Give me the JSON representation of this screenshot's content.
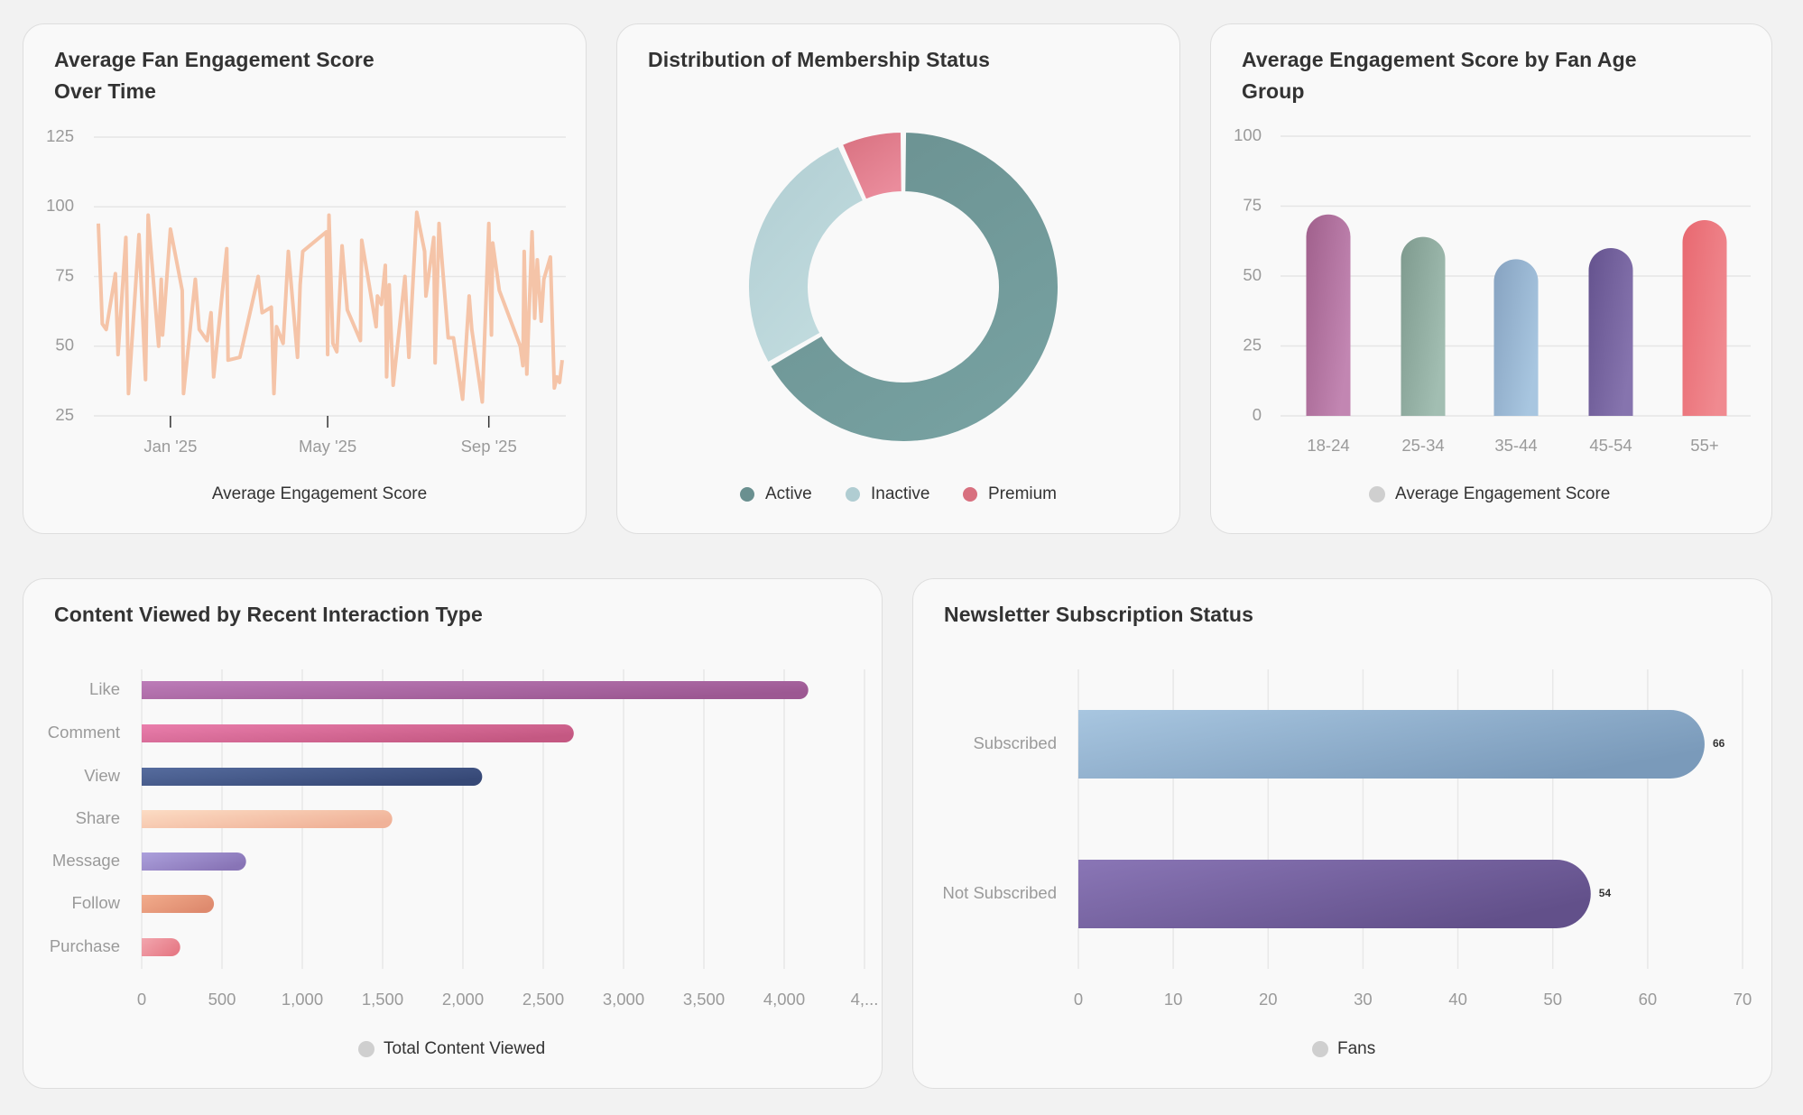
{
  "chart_data": [
    {
      "type": "line",
      "title": "Average Fan Engagement Score Over Time",
      "legend": "Average Engagement Score",
      "color": "#f5c4a8",
      "ylim": [
        25,
        125
      ],
      "y_ticks": [
        "25",
        "50",
        "75",
        "100",
        "125"
      ],
      "x_ticks": [
        {
          "date": "2025-01-01",
          "label": "Jan '25"
        },
        {
          "date": "2025-05-01",
          "label": "May '25"
        },
        {
          "date": "2025-09-01",
          "label": "Sep '25"
        }
      ],
      "grid": true,
      "points": [
        [
          "2024-11-07",
          94
        ],
        [
          "2024-11-10",
          58
        ],
        [
          "2024-11-13",
          56
        ],
        [
          "2024-11-20",
          76
        ],
        [
          "2024-11-22",
          47
        ],
        [
          "2024-11-28",
          89
        ],
        [
          "2024-11-30",
          33
        ],
        [
          "2024-12-08",
          90
        ],
        [
          "2024-12-13",
          38
        ],
        [
          "2024-12-15",
          97
        ],
        [
          "2024-12-23",
          50
        ],
        [
          "2024-12-25",
          74
        ],
        [
          "2024-12-26",
          54
        ],
        [
          "2025-01-01",
          92
        ],
        [
          "2025-01-10",
          70
        ],
        [
          "2025-01-11",
          33
        ],
        [
          "2025-01-20",
          74
        ],
        [
          "2025-01-23",
          56
        ],
        [
          "2025-01-29",
          52
        ],
        [
          "2025-02-01",
          62
        ],
        [
          "2025-02-03",
          39
        ],
        [
          "2025-02-13",
          85
        ],
        [
          "2025-02-14",
          45
        ],
        [
          "2025-02-23",
          46
        ],
        [
          "2025-03-09",
          75
        ],
        [
          "2025-03-12",
          62
        ],
        [
          "2025-03-19",
          64
        ],
        [
          "2025-03-21",
          33
        ],
        [
          "2025-03-23",
          57
        ],
        [
          "2025-03-28",
          51
        ],
        [
          "2025-04-01",
          84
        ],
        [
          "2025-04-08",
          46
        ],
        [
          "2025-04-10",
          72
        ],
        [
          "2025-04-12",
          84
        ],
        [
          "2025-04-30",
          91
        ],
        [
          "2025-05-01",
          47
        ],
        [
          "2025-05-02",
          97
        ],
        [
          "2025-05-05",
          51
        ],
        [
          "2025-05-08",
          48
        ],
        [
          "2025-05-12",
          86
        ],
        [
          "2025-05-16",
          63
        ],
        [
          "2025-05-26",
          52
        ],
        [
          "2025-05-27",
          88
        ],
        [
          "2025-06-07",
          57
        ],
        [
          "2025-06-08",
          68
        ],
        [
          "2025-06-11",
          65
        ],
        [
          "2025-06-14",
          79
        ],
        [
          "2025-06-15",
          39
        ],
        [
          "2025-06-17",
          72
        ],
        [
          "2025-06-20",
          36
        ],
        [
          "2025-06-29",
          75
        ],
        [
          "2025-07-02",
          46
        ],
        [
          "2025-07-08",
          98
        ],
        [
          "2025-07-14",
          84
        ],
        [
          "2025-07-15",
          68
        ],
        [
          "2025-07-21",
          89
        ],
        [
          "2025-07-22",
          44
        ],
        [
          "2025-07-25",
          94
        ],
        [
          "2025-08-01",
          53
        ],
        [
          "2025-08-05",
          53
        ],
        [
          "2025-08-12",
          31
        ],
        [
          "2025-08-17",
          68
        ],
        [
          "2025-08-19",
          56
        ],
        [
          "2025-08-27",
          30
        ],
        [
          "2025-09-01",
          94
        ],
        [
          "2025-09-03",
          54
        ],
        [
          "2025-09-04",
          87
        ],
        [
          "2025-09-09",
          70
        ],
        [
          "2025-09-25",
          50
        ],
        [
          "2025-09-27",
          43
        ],
        [
          "2025-09-28",
          84
        ],
        [
          "2025-09-30",
          40
        ],
        [
          "2025-10-04",
          91
        ],
        [
          "2025-10-06",
          60
        ],
        [
          "2025-10-08",
          81
        ],
        [
          "2025-10-11",
          59
        ],
        [
          "2025-10-13",
          74
        ],
        [
          "2025-10-18",
          82
        ],
        [
          "2025-10-21",
          35
        ],
        [
          "2025-10-23",
          39
        ],
        [
          "2025-10-25",
          37
        ],
        [
          "2025-10-27",
          45
        ]
      ]
    },
    {
      "type": "pie",
      "title": "Distribution of Membership Status",
      "donut": true,
      "slices": [
        {
          "label": "Active",
          "value": 80,
          "color": "#6a9090",
          "color2": "#76a0a0"
        },
        {
          "label": "Inactive",
          "value": 32,
          "color": "#b0cdd2",
          "color2": "#c2dcdf"
        },
        {
          "label": "Premium",
          "value": 8,
          "color": "#d8707f",
          "color2": "#ea8c9c"
        }
      ],
      "legend": "bottom"
    },
    {
      "type": "bar",
      "title": "Average Engagement Score by Fan Age Group",
      "legend": "Average Engagement Score",
      "categories": [
        "18-24",
        "25-34",
        "35-44",
        "45-54",
        "55+"
      ],
      "values": [
        72,
        64,
        56,
        60,
        70
      ],
      "colors": [
        [
          "#a0608c",
          "#c286b2"
        ],
        [
          "#7e9a8e",
          "#a2beb2"
        ],
        [
          "#86a2c0",
          "#a8c6e0"
        ],
        [
          "#64528e",
          "#8674ae"
        ],
        [
          "#e86870",
          "#f08a90"
        ]
      ],
      "ylim": [
        0,
        100
      ],
      "y_ticks": [
        "0",
        "25",
        "50",
        "75",
        "100"
      ],
      "grid": true
    },
    {
      "type": "bar",
      "orientation": "horizontal",
      "title": "Content Viewed by Recent Interaction Type",
      "legend": "Total Content Viewed",
      "categories": [
        "Like",
        "Comment",
        "View",
        "Share",
        "Message",
        "Follow",
        "Purchase"
      ],
      "values": [
        4150,
        2690,
        2120,
        1560,
        650,
        450,
        240
      ],
      "colors": [
        [
          "#bc7cb8",
          "#9c5892"
        ],
        [
          "#ea7eac",
          "#c45882"
        ],
        [
          "#566c9e",
          "#364876"
        ],
        [
          "#fcdcc4",
          "#f0b298"
        ],
        [
          "#aca0dc",
          "#8874b6"
        ],
        [
          "#f2ac8c",
          "#de8a6e"
        ],
        [
          "#f2a6ae",
          "#e67a86"
        ]
      ],
      "xlim": [
        0,
        4500
      ],
      "x_ticks": [
        "0",
        "500",
        "1,000",
        "1,500",
        "2,000",
        "2,500",
        "3,000",
        "3,500",
        "4,000",
        "4,..."
      ],
      "grid": true
    },
    {
      "type": "bar",
      "orientation": "horizontal",
      "title": "Newsletter Subscription Status",
      "legend": "Fans",
      "categories": [
        "Subscribed",
        "Not Subscribed"
      ],
      "values": [
        66,
        54
      ],
      "data_labels": [
        "66",
        "54"
      ],
      "colors": [
        [
          "#a8c6e0",
          "#7a9aba"
        ],
        [
          "#8a76b6",
          "#62508a"
        ]
      ],
      "xlim": [
        0,
        70
      ],
      "x_ticks": [
        "0",
        "10",
        "20",
        "30",
        "40",
        "50",
        "60",
        "70"
      ],
      "grid": true
    }
  ]
}
